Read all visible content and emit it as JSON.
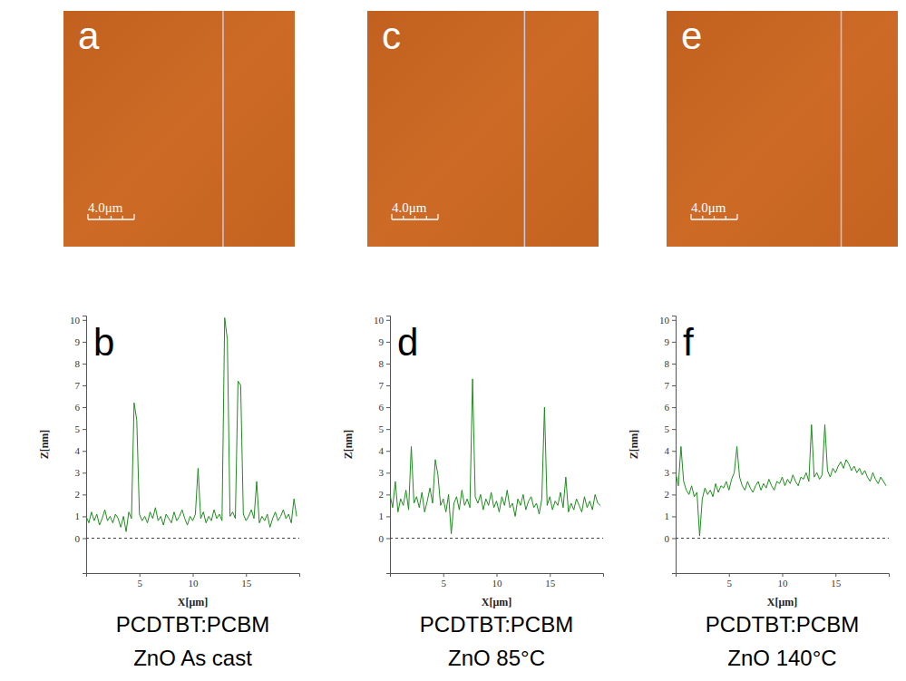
{
  "images": [
    {
      "label": "a",
      "scale_bar_label": "4.0μm",
      "scale_bar_length": 4,
      "field_size": 20,
      "scan_line_x": 13.8
    },
    {
      "label": "c",
      "scale_bar_label": "4.0μm",
      "scale_bar_length": 4,
      "field_size": 20,
      "scan_line_x": 13.6
    },
    {
      "label": "e",
      "scale_bar_label": "4.0μm",
      "scale_bar_length": 4,
      "field_size": 20,
      "scan_line_x": 15.1
    }
  ],
  "chart_data": [
    {
      "type": "line",
      "panel_label": "b",
      "x_label": "X[μm]",
      "y_label": "Z[nm]",
      "color": "#1e8c1e",
      "xlim": [
        0,
        20
      ],
      "ylim": [
        -1.6,
        10.2
      ],
      "xticks": [
        5,
        10,
        15
      ],
      "yticks": [
        0,
        1,
        2,
        3,
        4,
        5,
        6,
        7,
        8,
        9,
        10
      ],
      "reference_line": 0,
      "caption": [
        "PCDTBT:PCBM",
        "ZnO As cast"
      ],
      "x": [
        0,
        0.25,
        0.5,
        0.75,
        1,
        1.25,
        1.5,
        1.75,
        2,
        2.25,
        2.5,
        2.75,
        3,
        3.25,
        3.5,
        3.75,
        4,
        4.25,
        4.5,
        4.75,
        5,
        5.25,
        5.5,
        5.75,
        6,
        6.25,
        6.5,
        6.75,
        7,
        7.25,
        7.5,
        7.75,
        8,
        8.25,
        8.5,
        8.75,
        9,
        9.25,
        9.5,
        9.75,
        10,
        10.25,
        10.5,
        10.75,
        11,
        11.25,
        11.5,
        11.75,
        12,
        12.25,
        12.5,
        12.75,
        13,
        13.25,
        13.5,
        13.75,
        14,
        14.25,
        14.5,
        14.75,
        15,
        15.25,
        15.5,
        15.75,
        16,
        16.25,
        16.5,
        16.75,
        17,
        17.25,
        17.5,
        17.75,
        18,
        18.25,
        18.5,
        18.75,
        19,
        19.25,
        19.5,
        19.75
      ],
      "values": [
        1.0,
        0.7,
        1.2,
        0.8,
        1.1,
        0.6,
        0.9,
        1.3,
        0.8,
        1.0,
        0.7,
        1.1,
        0.9,
        0.5,
        1.0,
        0.3,
        1.2,
        0.9,
        6.2,
        5.4,
        1.1,
        0.8,
        1.0,
        0.7,
        1.2,
        0.9,
        1.4,
        0.8,
        1.0,
        0.6,
        1.1,
        0.9,
        0.7,
        1.2,
        0.8,
        1.0,
        1.3,
        0.9,
        0.6,
        1.0,
        0.8,
        1.1,
        3.2,
        0.9,
        1.2,
        0.7,
        1.0,
        0.8,
        1.3,
        0.9,
        1.1,
        0.8,
        10.1,
        9.1,
        1.0,
        1.2,
        0.9,
        7.2,
        7.0,
        1.1,
        0.8,
        1.0,
        1.3,
        0.9,
        2.6,
        0.7,
        1.0,
        0.8,
        1.1,
        0.5,
        0.9,
        1.2,
        0.8,
        1.0,
        1.3,
        0.9,
        1.1,
        0.7,
        1.8,
        1.0
      ]
    },
    {
      "type": "line",
      "panel_label": "d",
      "x_label": "X[μm]",
      "y_label": "Z[nm]",
      "color": "#1e8c1e",
      "xlim": [
        0,
        20
      ],
      "ylim": [
        -1.6,
        10.2
      ],
      "xticks": [
        5,
        10,
        15
      ],
      "yticks": [
        0,
        1,
        2,
        3,
        4,
        5,
        6,
        7,
        8,
        9,
        10
      ],
      "reference_line": 0,
      "caption": [
        "PCDTBT:PCBM",
        "ZnO 85°C"
      ],
      "x": [
        0,
        0.25,
        0.5,
        0.75,
        1,
        1.25,
        1.5,
        1.75,
        2,
        2.25,
        2.5,
        2.75,
        3,
        3.25,
        3.5,
        3.75,
        4,
        4.25,
        4.5,
        4.75,
        5,
        5.25,
        5.5,
        5.75,
        6,
        6.25,
        6.5,
        6.75,
        7,
        7.25,
        7.5,
        7.75,
        8,
        8.25,
        8.5,
        8.75,
        9,
        9.25,
        9.5,
        9.75,
        10,
        10.25,
        10.5,
        10.75,
        11,
        11.25,
        11.5,
        11.75,
        12,
        12.25,
        12.5,
        12.75,
        13,
        13.25,
        13.5,
        13.75,
        14,
        14.25,
        14.5,
        14.75,
        15,
        15.25,
        15.5,
        15.75,
        16,
        16.25,
        16.5,
        16.75,
        17,
        17.25,
        17.5,
        17.75,
        18,
        18.25,
        18.5,
        18.75,
        19,
        19.25,
        19.5,
        19.75
      ],
      "values": [
        2.0,
        1.4,
        2.6,
        1.2,
        1.8,
        1.5,
        2.2,
        1.3,
        4.2,
        1.6,
        1.9,
        1.4,
        2.1,
        1.2,
        1.7,
        2.3,
        1.6,
        3.6,
        2.9,
        1.5,
        1.8,
        1.2,
        2.0,
        0.2,
        1.6,
        1.9,
        1.3,
        2.2,
        1.5,
        1.8,
        1.4,
        7.3,
        1.9,
        1.6,
        2.0,
        1.3,
        1.8,
        1.5,
        2.1,
        1.4,
        1.7,
        1.2,
        1.9,
        1.5,
        2.2,
        1.4,
        1.6,
        1.0,
        1.8,
        1.5,
        2.0,
        1.3,
        1.7,
        1.9,
        1.4,
        1.6,
        1.1,
        1.8,
        6.0,
        1.5,
        1.9,
        1.3,
        1.7,
        1.5,
        2.1,
        1.4,
        2.8,
        1.2,
        1.6,
        1.3,
        1.8,
        1.5,
        1.2,
        1.9,
        1.4,
        1.7,
        1.3,
        2.0,
        1.6,
        1.5
      ]
    },
    {
      "type": "line",
      "panel_label": "f",
      "x_label": "X[μm]",
      "y_label": "Z[nm]",
      "color": "#1e8c1e",
      "xlim": [
        0,
        20
      ],
      "ylim": [
        -1.6,
        10.2
      ],
      "xticks": [
        5,
        10,
        15
      ],
      "yticks": [
        0,
        1,
        2,
        3,
        4,
        5,
        6,
        7,
        8,
        9,
        10
      ],
      "reference_line": 0,
      "caption": [
        "PCDTBT:PCBM",
        "ZnO 140°C"
      ],
      "x": [
        0,
        0.25,
        0.5,
        0.75,
        1,
        1.25,
        1.5,
        1.75,
        2,
        2.25,
        2.5,
        2.75,
        3,
        3.25,
        3.5,
        3.75,
        4,
        4.25,
        4.5,
        4.75,
        5,
        5.25,
        5.5,
        5.75,
        6,
        6.25,
        6.5,
        6.75,
        7,
        7.25,
        7.5,
        7.75,
        8,
        8.25,
        8.5,
        8.75,
        9,
        9.25,
        9.5,
        9.75,
        10,
        10.25,
        10.5,
        10.75,
        11,
        11.25,
        11.5,
        11.75,
        12,
        12.25,
        12.5,
        12.75,
        13,
        13.25,
        13.5,
        13.75,
        14,
        14.25,
        14.5,
        14.75,
        15,
        15.25,
        15.5,
        15.75,
        16,
        16.25,
        16.5,
        16.75,
        17,
        17.25,
        17.5,
        17.75,
        18,
        18.25,
        18.5,
        18.75,
        19,
        19.25,
        19.5,
        19.75
      ],
      "values": [
        3.0,
        2.4,
        4.2,
        2.6,
        2.2,
        2.0,
        2.4,
        1.9,
        2.1,
        0.1,
        1.8,
        2.3,
        2.0,
        2.2,
        1.9,
        2.5,
        2.1,
        2.4,
        2.3,
        2.6,
        2.2,
        2.7,
        3.0,
        4.2,
        2.8,
        2.4,
        2.2,
        2.6,
        2.3,
        2.1,
        2.4,
        2.6,
        2.2,
        2.5,
        2.3,
        2.7,
        2.4,
        2.2,
        2.6,
        2.5,
        2.8,
        2.4,
        2.7,
        2.5,
        2.9,
        2.6,
        2.4,
        2.8,
        2.7,
        3.0,
        2.6,
        5.2,
        2.8,
        3.0,
        2.7,
        2.9,
        5.2,
        3.1,
        2.8,
        3.2,
        3.0,
        3.3,
        3.5,
        3.2,
        3.6,
        3.4,
        3.1,
        3.3,
        3.0,
        3.2,
        2.9,
        3.1,
        2.8,
        2.6,
        3.0,
        2.7,
        2.5,
        2.8,
        2.6,
        2.4
      ]
    }
  ]
}
